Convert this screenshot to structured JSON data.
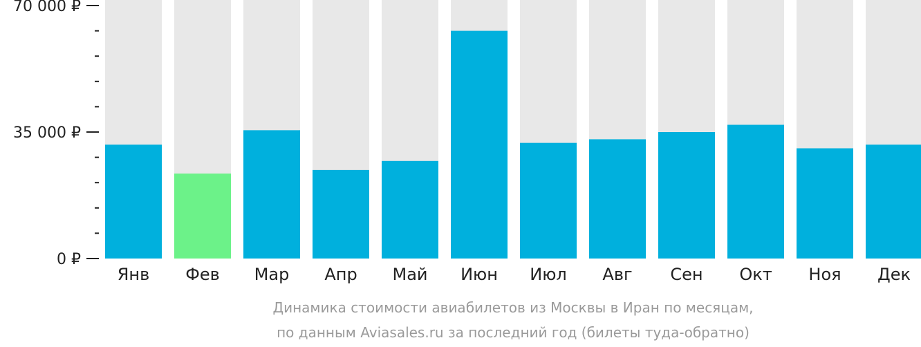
{
  "chart_data": {
    "type": "bar",
    "categories": [
      "Янв",
      "Фев",
      "Мар",
      "Апр",
      "Май",
      "Июн",
      "Июл",
      "Авг",
      "Сен",
      "Окт",
      "Ноя",
      "Дек"
    ],
    "values": [
      31500,
      23500,
      35500,
      24500,
      27000,
      63000,
      32000,
      33000,
      35000,
      37000,
      30500,
      31500
    ],
    "highlight_index": 1,
    "ylim": [
      0,
      70000
    ],
    "y_ticks": [
      {
        "value": 0,
        "label": "0 ₽"
      },
      {
        "value": 35000,
        "label": "35 000 ₽"
      },
      {
        "value": 70000,
        "label": "70 000 ₽"
      }
    ],
    "minor_tick_step": 7000,
    "grid": false,
    "caption_lines": [
      "Динамика стоимости авиабилетов из Москвы в Иран по месяцам,",
      "по данным Aviasales.ru за последний год (билеты туда-обратно)"
    ],
    "colors": {
      "bar": "#00b0dd",
      "highlight": "#6cf289",
      "background_bar": "#e8e8e8",
      "axis": "#222222",
      "caption": "#9a9a9a"
    }
  }
}
